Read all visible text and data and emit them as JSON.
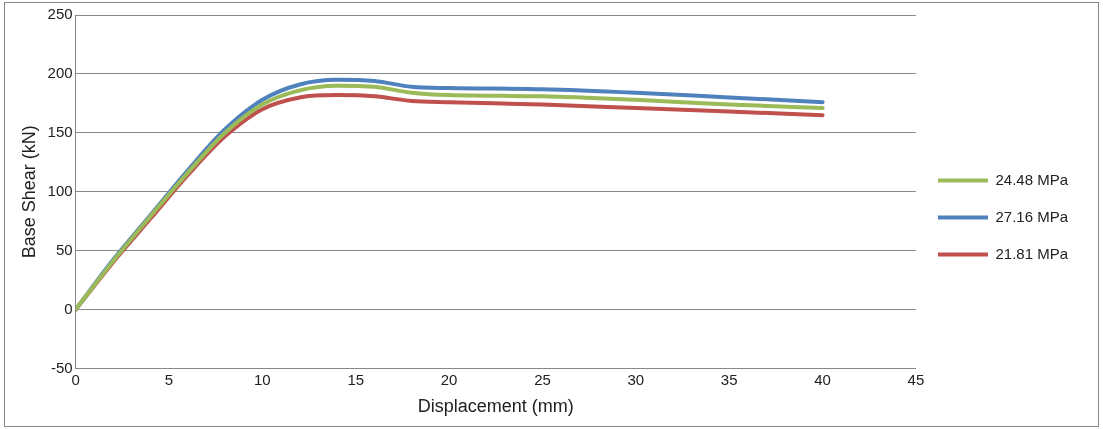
{
  "chart_data": {
    "type": "line",
    "xlabel": "Displacement (mm)",
    "ylabel": "Base Shear (kN)",
    "xlim": [
      0,
      45
    ],
    "xticks": [
      0,
      5,
      10,
      15,
      20,
      25,
      30,
      35,
      40,
      45
    ],
    "ylim": [
      -50,
      250
    ],
    "yticks": [
      -50,
      0,
      50,
      100,
      150,
      200,
      250
    ],
    "grid": "y",
    "legend": "right",
    "marker": "none",
    "line_style": "solid",
    "x": [
      0,
      2,
      4,
      6,
      8,
      10,
      12,
      14,
      16,
      18,
      20,
      25,
      30,
      35,
      40
    ],
    "series": [
      {
        "name": "24.48 MPa",
        "color": "#9bbb59",
        "values": [
          0,
          41,
          79,
          116,
          150,
          174,
          186,
          190,
          189,
          184,
          182,
          181,
          178,
          174,
          171
        ]
      },
      {
        "name": "27.16 MPa",
        "color": "#4f81bd",
        "values": [
          0,
          42,
          80,
          118,
          153,
          178,
          191,
          195,
          194,
          189,
          188,
          187,
          184,
          180,
          176
        ]
      },
      {
        "name": "21.81 MPa",
        "color": "#c0504d",
        "values": [
          0,
          40,
          77,
          114,
          147,
          170,
          180,
          182,
          181,
          177,
          176,
          174,
          171,
          168,
          165
        ]
      }
    ]
  }
}
